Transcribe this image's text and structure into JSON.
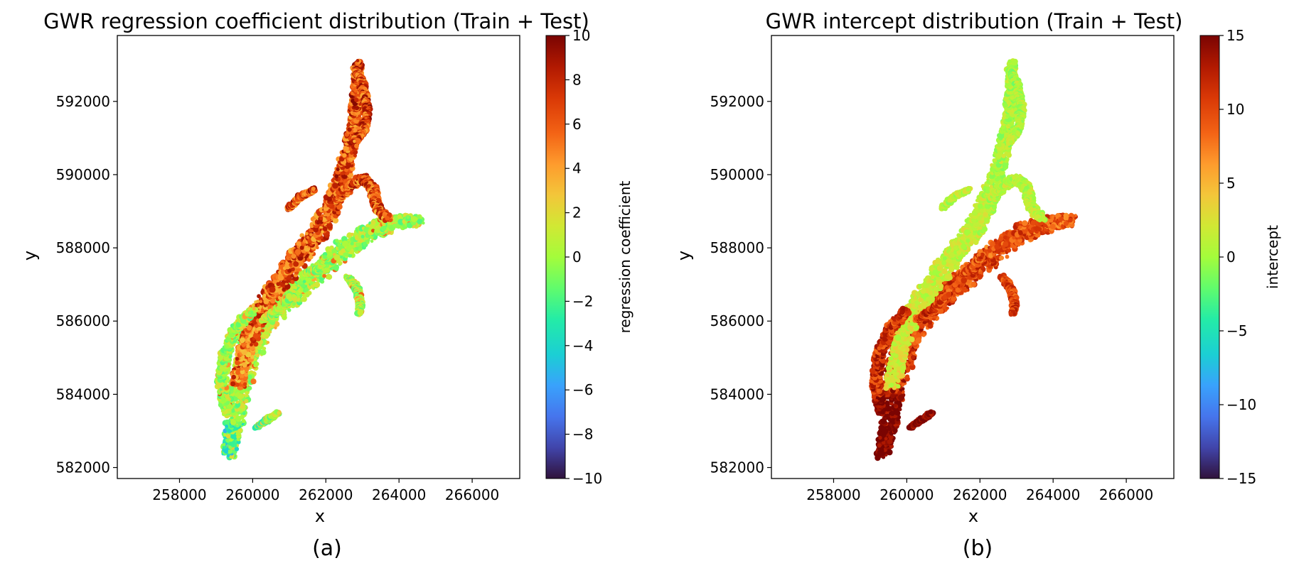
{
  "chart_data": [
    {
      "type": "heatmap",
      "panel_label": "(a)",
      "title": "GWR regression coefficient distribution (Train + Test)",
      "xlabel": "x",
      "ylabel": "y",
      "xlim": [
        256300,
        267300
      ],
      "ylim": [
        581700,
        593800
      ],
      "xticks": [
        258000,
        260000,
        262000,
        264000,
        266000
      ],
      "yticks": [
        582000,
        584000,
        586000,
        588000,
        590000,
        592000
      ],
      "xtick_labels": [
        "258000",
        "260000",
        "262000",
        "264000",
        "266000"
      ],
      "ytick_labels": [
        "582000",
        "584000",
        "586000",
        "588000",
        "590000",
        "592000"
      ],
      "colorbar": {
        "label": "regression coefficient",
        "min": -10,
        "max": 10,
        "ticks": [
          -10,
          -8,
          -6,
          -4,
          -2,
          0,
          2,
          4,
          6,
          8,
          10
        ],
        "tick_labels": [
          "−10",
          "−8",
          "−6",
          "−4",
          "−2",
          "0",
          "2",
          "4",
          "6",
          "8",
          "10"
        ],
        "colormap": "turbo"
      },
      "grid": false,
      "value_pattern": {
        "typical_range": [
          -3,
          8
        ],
        "north_branch": "high (4 to 10)",
        "south_branch": "low to moderate (-3 to 2)",
        "south_tip": "low (-8 to -4)"
      }
    },
    {
      "type": "heatmap",
      "panel_label": "(b)",
      "title": "GWR intercept distribution (Train + Test)",
      "xlabel": "x",
      "ylabel": "y",
      "xlim": [
        256300,
        267300
      ],
      "ylim": [
        581700,
        593800
      ],
      "xticks": [
        258000,
        260000,
        262000,
        264000,
        266000
      ],
      "yticks": [
        582000,
        584000,
        586000,
        588000,
        590000,
        592000
      ],
      "xtick_labels": [
        "258000",
        "260000",
        "262000",
        "264000",
        "266000"
      ],
      "ytick_labels": [
        "582000",
        "584000",
        "586000",
        "588000",
        "590000",
        "592000"
      ],
      "colorbar": {
        "label": "intercept",
        "min": -15,
        "max": 15,
        "ticks": [
          -15,
          -10,
          -5,
          0,
          5,
          10,
          15
        ],
        "tick_labels": [
          "−15",
          "−10",
          "−5",
          "0",
          "5",
          "10",
          "15"
        ],
        "colormap": "turbo"
      },
      "grid": false,
      "value_pattern": {
        "typical_range": [
          -3,
          15
        ],
        "north_branch": "near zero (-2 to 2)",
        "south_branch": "high (5 to 15)",
        "south_tip": "very high (10 to 15)"
      }
    }
  ]
}
